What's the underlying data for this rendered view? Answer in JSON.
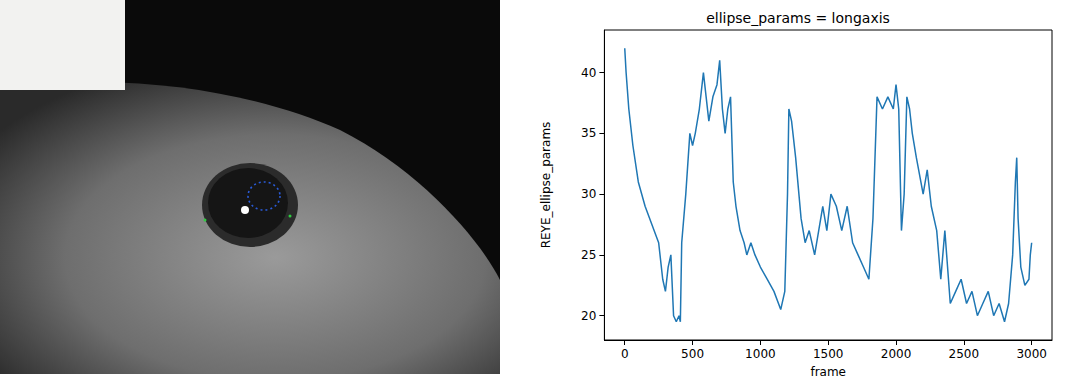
{
  "chart_data": {
    "type": "line",
    "title": "ellipse_params = longaxis",
    "x_label": "frame",
    "y_label": "REYE_ellipse_params",
    "color": "#1f77b4",
    "grid": false,
    "xlim": [
      -150,
      3150
    ],
    "xticks": [
      0,
      500,
      1000,
      1500,
      2000,
      2500,
      3000
    ],
    "ylim": [
      18,
      43.5
    ],
    "yticks": [
      20,
      25,
      30,
      35,
      40
    ],
    "x": [
      0,
      10,
      30,
      60,
      100,
      150,
      200,
      250,
      280,
      300,
      320,
      340,
      360,
      380,
      400,
      410,
      420,
      450,
      480,
      500,
      520,
      550,
      580,
      600,
      620,
      650,
      680,
      700,
      720,
      740,
      760,
      780,
      800,
      820,
      850,
      880,
      900,
      930,
      960,
      1000,
      1050,
      1100,
      1150,
      1180,
      1200,
      1210,
      1230,
      1260,
      1300,
      1330,
      1360,
      1400,
      1430,
      1460,
      1490,
      1520,
      1560,
      1600,
      1640,
      1680,
      1720,
      1760,
      1800,
      1830,
      1860,
      1900,
      1940,
      1980,
      2000,
      2020,
      2040,
      2060,
      2080,
      2100,
      2120,
      2150,
      2200,
      2230,
      2260,
      2300,
      2330,
      2360,
      2400,
      2440,
      2480,
      2520,
      2560,
      2600,
      2640,
      2680,
      2720,
      2760,
      2800,
      2830,
      2860,
      2880,
      2890,
      2900,
      2920,
      2950,
      2980,
      2990,
      3000
    ],
    "values": [
      42,
      40,
      37,
      34,
      31,
      29,
      27.5,
      26,
      23,
      22,
      24,
      25,
      20,
      19.5,
      20,
      19.5,
      26,
      30,
      35,
      34,
      35,
      37,
      40,
      38,
      36,
      38,
      39,
      41,
      37,
      35,
      37,
      38,
      31,
      29,
      27,
      26,
      25,
      26,
      25,
      24,
      23,
      22,
      20.5,
      22,
      30,
      37,
      36,
      33,
      28,
      26,
      27,
      25,
      27,
      29,
      27,
      30,
      29,
      27,
      29,
      26,
      25,
      24,
      23,
      28,
      38,
      37,
      38,
      37,
      39,
      37,
      27,
      30,
      38,
      37,
      35,
      33,
      30,
      32,
      29,
      27,
      23,
      27,
      21,
      22,
      23,
      21,
      22,
      20,
      21,
      22,
      20,
      21,
      19.5,
      21,
      25,
      31,
      33,
      28,
      24,
      22.5,
      23,
      25,
      26
    ]
  }
}
